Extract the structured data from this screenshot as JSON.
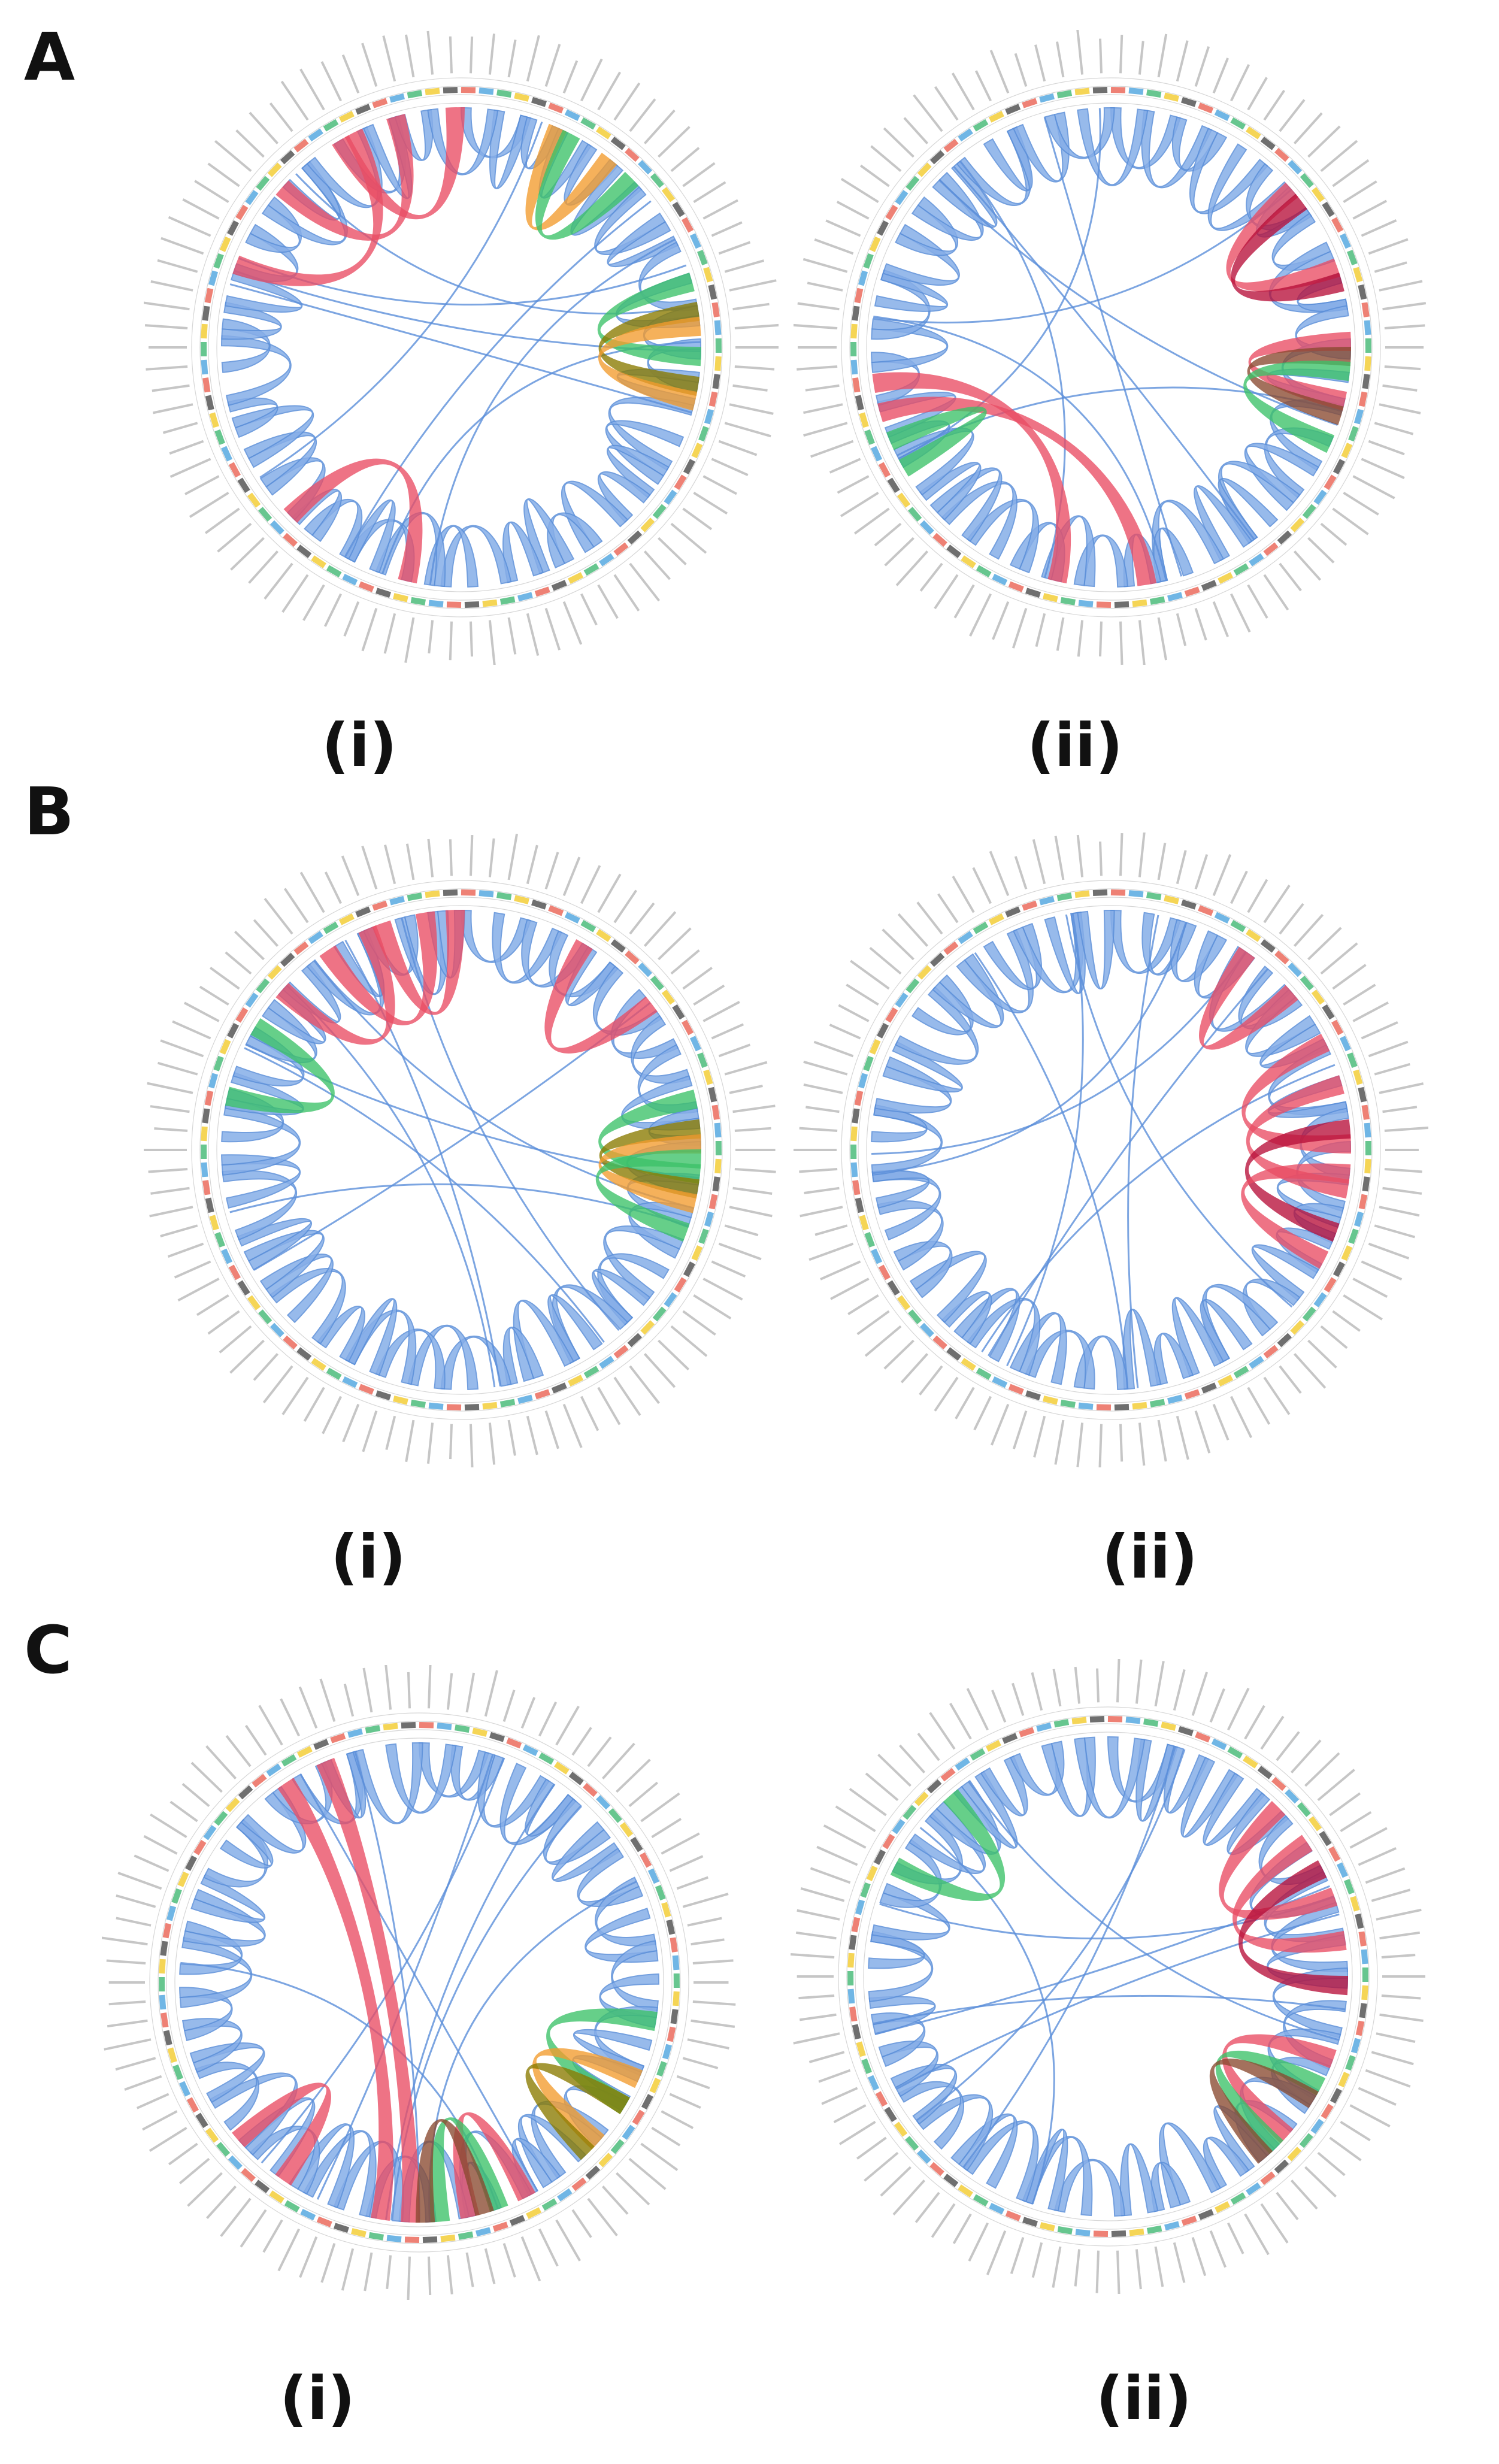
{
  "panels": [
    {
      "letter": "A",
      "plots": [
        {
          "label": "(i)",
          "highlights": [
            {
              "start": 0.86,
              "end": 0.95,
              "color": "#ea4d64"
            },
            {
              "start": 0.91,
              "end": 0.99,
              "color": "#ea4d64"
            },
            {
              "start": 0.8,
              "end": 0.92,
              "color": "#ea4d64"
            },
            {
              "start": 0.06,
              "end": 0.1,
              "color": "#f39c2e"
            },
            {
              "start": 0.07,
              "end": 0.12,
              "color": "#3cc268"
            },
            {
              "start": 0.2,
              "end": 0.25,
              "color": "#3cc268"
            },
            {
              "start": 0.22,
              "end": 0.27,
              "color": "#8a7a00"
            },
            {
              "start": 0.23,
              "end": 0.28,
              "color": "#f39c2e"
            },
            {
              "start": 0.53,
              "end": 0.62,
              "color": "#ea4d64"
            }
          ]
        },
        {
          "label": "(ii)",
          "highlights": [
            {
              "start": 0.13,
              "end": 0.19,
              "color": "#ea4d64"
            },
            {
              "start": 0.14,
              "end": 0.2,
              "color": "#b8103a"
            },
            {
              "start": 0.24,
              "end": 0.28,
              "color": "#ea4d64"
            },
            {
              "start": 0.25,
              "end": 0.29,
              "color": "#8a4a30"
            },
            {
              "start": 0.26,
              "end": 0.31,
              "color": "#3cc268"
            },
            {
              "start": 0.7,
              "end": 0.47,
              "color": "#ea4d64"
            },
            {
              "start": 0.72,
              "end": 0.53,
              "color": "#ea4d64"
            },
            {
              "start": 0.68,
              "end": 0.66,
              "color": "#3cc268"
            }
          ]
        }
      ]
    },
    {
      "letter": "B",
      "plots": [
        {
          "label": "(i)",
          "highlights": [
            {
              "start": 0.86,
              "end": 0.93,
              "color": "#ea4d64"
            },
            {
              "start": 0.9,
              "end": 0.97,
              "color": "#ea4d64"
            },
            {
              "start": 0.94,
              "end": 0.99,
              "color": "#ea4d64"
            },
            {
              "start": 0.78,
              "end": 0.83,
              "color": "#3cc268"
            },
            {
              "start": 0.08,
              "end": 0.14,
              "color": "#ea4d64"
            },
            {
              "start": 0.21,
              "end": 0.26,
              "color": "#3cc268"
            },
            {
              "start": 0.23,
              "end": 0.27,
              "color": "#8a7a00"
            },
            {
              "start": 0.24,
              "end": 0.28,
              "color": "#f39c2e"
            },
            {
              "start": 0.25,
              "end": 0.3,
              "color": "#3cc268"
            }
          ]
        },
        {
          "label": "(ii)",
          "highlights": [
            {
              "start": 0.09,
              "end": 0.13,
              "color": "#ea4d64"
            },
            {
              "start": 0.17,
              "end": 0.24,
              "color": "#ea4d64"
            },
            {
              "start": 0.2,
              "end": 0.27,
              "color": "#ea4d64"
            },
            {
              "start": 0.23,
              "end": 0.3,
              "color": "#b8103a"
            },
            {
              "start": 0.26,
              "end": 0.32,
              "color": "#ea4d64"
            }
          ]
        }
      ]
    },
    {
      "letter": "C",
      "plots": [
        {
          "label": "(i)",
          "highlights": [
            {
              "start": 0.9,
              "end": 0.52,
              "color": "#ea4d64"
            },
            {
              "start": 0.93,
              "end": 0.5,
              "color": "#ea4d64"
            },
            {
              "start": 0.63,
              "end": 0.59,
              "color": "#ea4d64"
            },
            {
              "start": 0.27,
              "end": 0.33,
              "color": "#3cc268"
            },
            {
              "start": 0.31,
              "end": 0.36,
              "color": "#f39c2e"
            },
            {
              "start": 0.33,
              "end": 0.37,
              "color": "#8a7a00"
            },
            {
              "start": 0.42,
              "end": 0.46,
              "color": "#ea4d64"
            },
            {
              "start": 0.44,
              "end": 0.48,
              "color": "#3cc268"
            },
            {
              "start": 0.45,
              "end": 0.49,
              "color": "#8a4a30"
            }
          ]
        },
        {
          "label": "(ii)",
          "highlights": [
            {
              "start": 0.82,
              "end": 0.88,
              "color": "#3cc268"
            },
            {
              "start": 0.12,
              "end": 0.19,
              "color": "#ea4d64"
            },
            {
              "start": 0.15,
              "end": 0.22,
              "color": "#ea4d64"
            },
            {
              "start": 0.17,
              "end": 0.25,
              "color": "#b8103a"
            },
            {
              "start": 0.3,
              "end": 0.36,
              "color": "#ea4d64"
            },
            {
              "start": 0.32,
              "end": 0.37,
              "color": "#3cc268"
            },
            {
              "start": 0.33,
              "end": 0.38,
              "color": "#8a4a30"
            }
          ]
        }
      ]
    }
  ],
  "colors": {
    "ribbon_blue": "#5b8fd9",
    "ribbon_blue_fill": "#86aee8",
    "track_gray": "#bbbbbb",
    "label_gray": "#999999"
  }
}
